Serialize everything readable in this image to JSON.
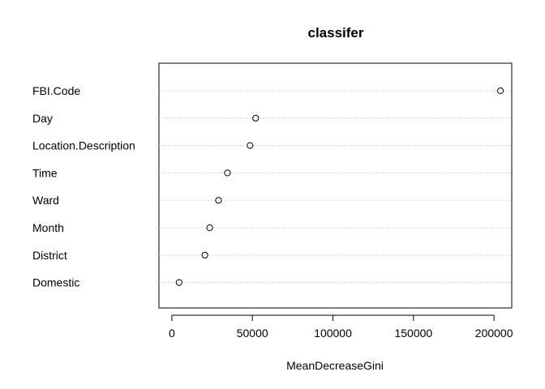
{
  "chart_data": {
    "type": "scatter",
    "title": "classifer",
    "xlabel": "MeanDecreaseGini",
    "ylabel": "",
    "xlim": [
      -8000,
      211000
    ],
    "xticks": [
      0,
      50000,
      100000,
      150000,
      200000
    ],
    "grid": "horizontal dotted",
    "categories": [
      "FBI.Code",
      "Day",
      "Location.Description",
      "Time",
      "Ward",
      "Month",
      "District",
      "Domestic"
    ],
    "values": [
      204000,
      52000,
      48500,
      34500,
      29000,
      23500,
      20500,
      4500
    ]
  }
}
